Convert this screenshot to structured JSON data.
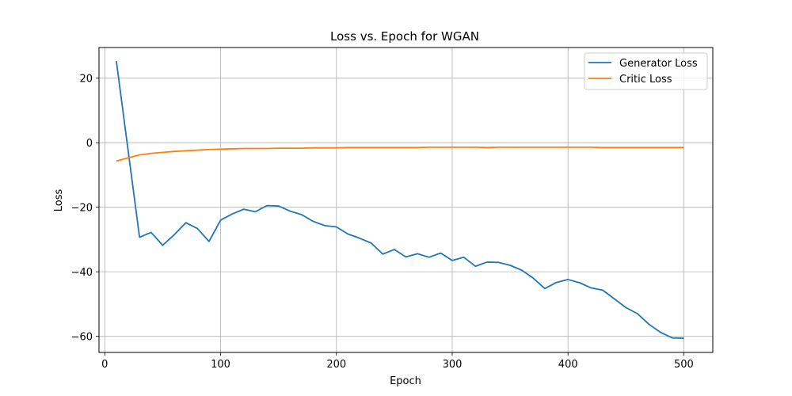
{
  "chart_data": {
    "type": "line",
    "title": "Loss vs. Epoch for WGAN",
    "xlabel": "Epoch",
    "ylabel": "Loss",
    "xlim": [
      -5,
      525
    ],
    "ylim": [
      -65,
      29.5
    ],
    "xticks": [
      0,
      100,
      200,
      300,
      400,
      500
    ],
    "yticks": [
      -60,
      -40,
      -20,
      0,
      20
    ],
    "grid": true,
    "legend_position": "top-right",
    "x": [
      10,
      20,
      30,
      40,
      50,
      60,
      70,
      80,
      90,
      100,
      110,
      120,
      130,
      140,
      150,
      160,
      170,
      180,
      190,
      200,
      210,
      220,
      230,
      240,
      250,
      260,
      270,
      280,
      290,
      300,
      310,
      320,
      330,
      340,
      350,
      360,
      370,
      380,
      390,
      400,
      410,
      420,
      430,
      440,
      450,
      460,
      470,
      480,
      490,
      500
    ],
    "series": [
      {
        "name": "Generator Loss",
        "color": "#1f77b4",
        "values": [
          25.3,
          -2.0,
          -29.3,
          -27.8,
          -31.8,
          -28.5,
          -24.8,
          -26.6,
          -30.6,
          -24.0,
          -22.1,
          -20.6,
          -21.4,
          -19.5,
          -19.6,
          -21.2,
          -22.3,
          -24.4,
          -25.7,
          -26.1,
          -28.3,
          -29.6,
          -31.1,
          -34.5,
          -33.1,
          -35.4,
          -34.4,
          -35.5,
          -34.2,
          -36.5,
          -35.5,
          -38.3,
          -37.0,
          -37.1,
          -38.0,
          -39.5,
          -42.0,
          -45.2,
          -43.3,
          -42.4,
          -43.4,
          -45.0,
          -45.7,
          -48.4,
          -51.1,
          -53.0,
          -56.3,
          -58.8,
          -60.5,
          -60.6
        ]
      },
      {
        "name": "Critic Loss",
        "color": "#ff7f0e",
        "values": [
          -5.7,
          -4.7,
          -3.8,
          -3.3,
          -3.0,
          -2.7,
          -2.5,
          -2.3,
          -2.1,
          -2.0,
          -1.9,
          -1.8,
          -1.8,
          -1.8,
          -1.7,
          -1.7,
          -1.7,
          -1.6,
          -1.6,
          -1.6,
          -1.5,
          -1.5,
          -1.5,
          -1.5,
          -1.5,
          -1.5,
          -1.5,
          -1.4,
          -1.4,
          -1.4,
          -1.4,
          -1.4,
          -1.5,
          -1.4,
          -1.4,
          -1.4,
          -1.4,
          -1.4,
          -1.4,
          -1.4,
          -1.4,
          -1.4,
          -1.5,
          -1.5,
          -1.5,
          -1.5,
          -1.5,
          -1.5,
          -1.5,
          -1.5
        ]
      }
    ]
  }
}
